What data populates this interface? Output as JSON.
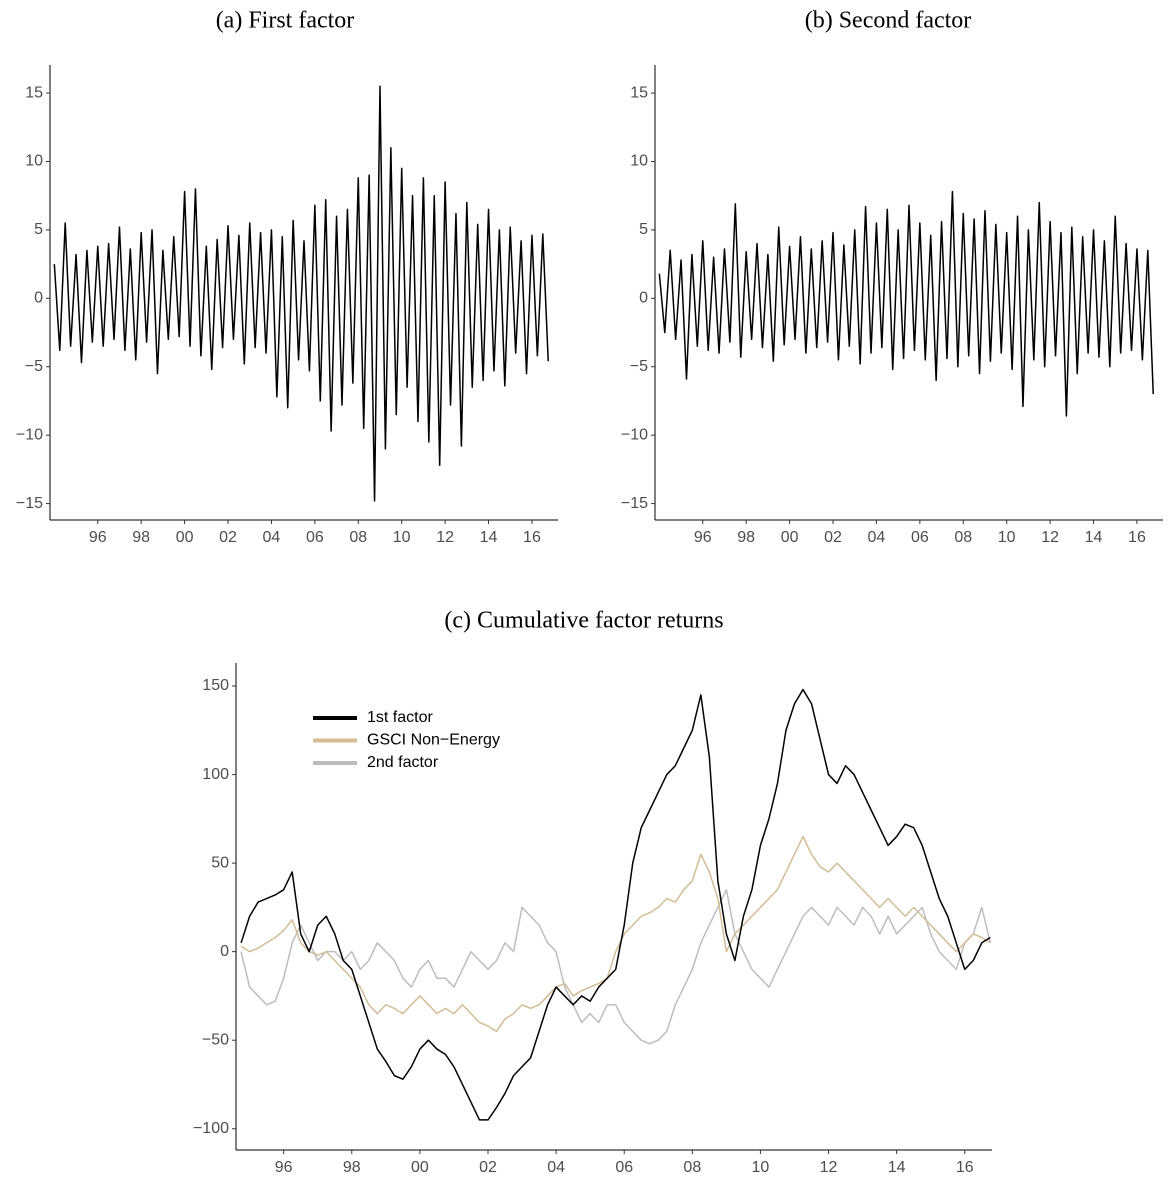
{
  "chart_data": [
    {
      "type": "line",
      "title": "(a) First factor",
      "xlim": [
        1993.8,
        2017.2
      ],
      "xticks": [
        {
          "value": 1996,
          "label": "96"
        },
        {
          "value": 1998,
          "label": "98"
        },
        {
          "value": 2000,
          "label": "00"
        },
        {
          "value": 2002,
          "label": "02"
        },
        {
          "value": 2004,
          "label": "04"
        },
        {
          "value": 2006,
          "label": "06"
        },
        {
          "value": 2008,
          "label": "08"
        },
        {
          "value": 2010,
          "label": "10"
        },
        {
          "value": 2012,
          "label": "12"
        },
        {
          "value": 2014,
          "label": "14"
        },
        {
          "value": 2016,
          "label": "16"
        }
      ],
      "ylim": [
        -16.2,
        17.05
      ],
      "yticks": [
        {
          "value": -15,
          "label": "−15"
        },
        {
          "value": -10,
          "label": "−10"
        },
        {
          "value": -5,
          "label": "−5"
        },
        0,
        5,
        10,
        15
      ],
      "x": [
        1994.0,
        1994.25,
        1994.5,
        1994.75,
        1995.0,
        1995.25,
        1995.5,
        1995.75,
        1996.0,
        1996.25,
        1996.5,
        1996.75,
        1997.0,
        1997.25,
        1997.5,
        1997.75,
        1998.0,
        1998.25,
        1998.5,
        1998.75,
        1999.0,
        1999.25,
        1999.5,
        1999.75,
        2000.0,
        2000.25,
        2000.5,
        2000.75,
        2001.0,
        2001.25,
        2001.5,
        2001.75,
        2002.0,
        2002.25,
        2002.5,
        2002.75,
        2003.0,
        2003.25,
        2003.5,
        2003.75,
        2004.0,
        2004.25,
        2004.5,
        2004.75,
        2005.0,
        2005.25,
        2005.5,
        2005.75,
        2006.0,
        2006.25,
        2006.5,
        2006.75,
        2007.0,
        2007.25,
        2007.5,
        2007.75,
        2008.0,
        2008.25,
        2008.5,
        2008.75,
        2009.0,
        2009.25,
        2009.5,
        2009.75,
        2010.0,
        2010.25,
        2010.5,
        2010.75,
        2011.0,
        2011.25,
        2011.5,
        2011.75,
        2012.0,
        2012.25,
        2012.5,
        2012.75,
        2013.0,
        2013.25,
        2013.5,
        2013.75,
        2014.0,
        2014.25,
        2014.5,
        2014.75,
        2015.0,
        2015.25,
        2015.5,
        2015.75,
        2016.0,
        2016.25,
        2016.5,
        2016.75
      ],
      "series": [
        {
          "color": "#000000",
          "values": [
            2.5,
            -3.8,
            5.5,
            -3.5,
            3.2,
            -4.7,
            3.5,
            -3.2,
            3.8,
            -3.5,
            4.0,
            -3.0,
            5.2,
            -3.8,
            3.6,
            -4.5,
            4.8,
            -3.2,
            5.0,
            -5.5,
            3.5,
            -3.0,
            4.5,
            -2.8,
            7.8,
            -3.5,
            8.0,
            -4.2,
            3.8,
            -5.2,
            4.3,
            -3.6,
            5.3,
            -3.0,
            4.6,
            -4.8,
            5.5,
            -3.6,
            4.8,
            -4.0,
            5.0,
            -7.2,
            4.5,
            -8.0,
            5.7,
            -4.5,
            4.2,
            -5.3,
            6.8,
            -7.5,
            7.2,
            -9.7,
            6.0,
            -7.8,
            6.5,
            -6.2,
            8.8,
            -9.5,
            9.0,
            -14.8,
            15.5,
            -11.0,
            11.0,
            -8.5,
            9.5,
            -6.5,
            7.5,
            -9.0,
            8.8,
            -10.5,
            7.5,
            -12.2,
            8.5,
            -7.8,
            6.2,
            -10.8,
            7.0,
            -6.5,
            5.4,
            -6.0,
            6.5,
            -5.3,
            5.0,
            -6.4,
            5.2,
            -4.0,
            4.2,
            -5.5,
            4.6,
            -4.2,
            4.7,
            -4.6
          ]
        }
      ]
    },
    {
      "type": "line",
      "title": "(b) Second factor",
      "xlim": [
        1993.8,
        2017.2
      ],
      "xticks": [
        {
          "value": 1996,
          "label": "96"
        },
        {
          "value": 1998,
          "label": "98"
        },
        {
          "value": 2000,
          "label": "00"
        },
        {
          "value": 2002,
          "label": "02"
        },
        {
          "value": 2004,
          "label": "04"
        },
        {
          "value": 2006,
          "label": "06"
        },
        {
          "value": 2008,
          "label": "08"
        },
        {
          "value": 2010,
          "label": "10"
        },
        {
          "value": 2012,
          "label": "12"
        },
        {
          "value": 2014,
          "label": "14"
        },
        {
          "value": 2016,
          "label": "16"
        }
      ],
      "ylim": [
        -16.2,
        17.05
      ],
      "yticks": [
        {
          "value": -15,
          "label": "−15"
        },
        {
          "value": -10,
          "label": "−10"
        },
        {
          "value": -5,
          "label": "−5"
        },
        0,
        5,
        10,
        15
      ],
      "x": [
        1994.0,
        1994.25,
        1994.5,
        1994.75,
        1995.0,
        1995.25,
        1995.5,
        1995.75,
        1996.0,
        1996.25,
        1996.5,
        1996.75,
        1997.0,
        1997.25,
        1997.5,
        1997.75,
        1998.0,
        1998.25,
        1998.5,
        1998.75,
        1999.0,
        1999.25,
        1999.5,
        1999.75,
        2000.0,
        2000.25,
        2000.5,
        2000.75,
        2001.0,
        2001.25,
        2001.5,
        2001.75,
        2002.0,
        2002.25,
        2002.5,
        2002.75,
        2003.0,
        2003.25,
        2003.5,
        2003.75,
        2004.0,
        2004.25,
        2004.5,
        2004.75,
        2005.0,
        2005.25,
        2005.5,
        2005.75,
        2006.0,
        2006.25,
        2006.5,
        2006.75,
        2007.0,
        2007.25,
        2007.5,
        2007.75,
        2008.0,
        2008.25,
        2008.5,
        2008.75,
        2009.0,
        2009.25,
        2009.5,
        2009.75,
        2010.0,
        2010.25,
        2010.5,
        2010.75,
        2011.0,
        2011.25,
        2011.5,
        2011.75,
        2012.0,
        2012.25,
        2012.5,
        2012.75,
        2013.0,
        2013.25,
        2013.5,
        2013.75,
        2014.0,
        2014.25,
        2014.5,
        2014.75,
        2015.0,
        2015.25,
        2015.5,
        2015.75,
        2016.0,
        2016.25,
        2016.5,
        2016.75
      ],
      "series": [
        {
          "color": "#000000",
          "values": [
            1.8,
            -2.5,
            3.5,
            -3.0,
            2.8,
            -5.9,
            3.2,
            -3.5,
            4.2,
            -3.8,
            3.0,
            -4.0,
            3.6,
            -3.2,
            6.9,
            -4.3,
            3.4,
            -3.0,
            4.0,
            -3.6,
            3.2,
            -4.6,
            5.2,
            -3.4,
            3.8,
            -3.0,
            4.5,
            -4.0,
            3.6,
            -3.6,
            4.2,
            -3.2,
            4.8,
            -4.5,
            3.9,
            -3.5,
            5.0,
            -4.8,
            6.7,
            -4.0,
            5.5,
            -3.6,
            6.5,
            -5.2,
            5.0,
            -4.4,
            6.8,
            -3.8,
            5.5,
            -4.5,
            4.6,
            -6.0,
            5.6,
            -4.4,
            7.8,
            -5.0,
            6.2,
            -4.2,
            5.8,
            -5.5,
            6.4,
            -4.6,
            5.4,
            -4.0,
            4.8,
            -5.2,
            6.0,
            -7.9,
            5.0,
            -4.5,
            7.0,
            -5.0,
            5.6,
            -4.2,
            4.8,
            -8.6,
            5.2,
            -5.5,
            4.5,
            -4.0,
            5.0,
            -4.3,
            4.2,
            -5.0,
            6.0,
            -4.0,
            4.0,
            -3.8,
            3.6,
            -4.5,
            3.5,
            -7.0
          ]
        }
      ]
    },
    {
      "type": "line",
      "title": "(c) Cumulative factor returns",
      "legend": "upper left",
      "xlim": [
        1994.6,
        2016.8
      ],
      "xticks": [
        {
          "value": 1996,
          "label": "96"
        },
        {
          "value": 1998,
          "label": "98"
        },
        {
          "value": 2000,
          "label": "00"
        },
        {
          "value": 2002,
          "label": "02"
        },
        {
          "value": 2004,
          "label": "04"
        },
        {
          "value": 2006,
          "label": "06"
        },
        {
          "value": 2008,
          "label": "08"
        },
        {
          "value": 2010,
          "label": "10"
        },
        {
          "value": 2012,
          "label": "12"
        },
        {
          "value": 2014,
          "label": "14"
        },
        {
          "value": 2016,
          "label": "16"
        }
      ],
      "ylim": [
        -112,
        163
      ],
      "yticks": [
        {
          "value": -100,
          "label": "−100"
        },
        {
          "value": -50,
          "label": "−50"
        },
        0,
        50,
        100,
        150
      ],
      "x": [
        1994.75,
        1995.0,
        1995.25,
        1995.5,
        1995.75,
        1996.0,
        1996.25,
        1996.5,
        1996.75,
        1997.0,
        1997.25,
        1997.5,
        1997.75,
        1998.0,
        1998.25,
        1998.5,
        1998.75,
        1999.0,
        1999.25,
        1999.5,
        1999.75,
        2000.0,
        2000.25,
        2000.5,
        2000.75,
        2001.0,
        2001.25,
        2001.5,
        2001.75,
        2002.0,
        2002.25,
        2002.5,
        2002.75,
        2003.0,
        2003.25,
        2003.5,
        2003.75,
        2004.0,
        2004.25,
        2004.5,
        2004.75,
        2005.0,
        2005.25,
        2005.5,
        2005.75,
        2006.0,
        2006.25,
        2006.5,
        2006.75,
        2007.0,
        2007.25,
        2007.5,
        2007.75,
        2008.0,
        2008.25,
        2008.5,
        2008.75,
        2009.0,
        2009.25,
        2009.5,
        2009.75,
        2010.0,
        2010.25,
        2010.5,
        2010.75,
        2011.0,
        2011.25,
        2011.5,
        2011.75,
        2012.0,
        2012.25,
        2012.5,
        2012.75,
        2013.0,
        2013.25,
        2013.5,
        2013.75,
        2014.0,
        2014.25,
        2014.5,
        2014.75,
        2015.0,
        2015.25,
        2015.5,
        2015.75,
        2016.0,
        2016.25,
        2016.5,
        2016.75
      ],
      "series": [
        {
          "name": "2nd factor",
          "color": "#bdbdbd",
          "values": [
            0,
            -20,
            -25,
            -30,
            -28,
            -15,
            5,
            15,
            5,
            -5,
            0,
            0,
            -5,
            0,
            -10,
            -5,
            5,
            0,
            -5,
            -15,
            -20,
            -10,
            -5,
            -15,
            -15,
            -20,
            -10,
            0,
            -5,
            -10,
            -5,
            5,
            0,
            25,
            20,
            15,
            5,
            0,
            -20,
            -30,
            -40,
            -35,
            -40,
            -30,
            -30,
            -40,
            -45,
            -50,
            -52,
            -50,
            -45,
            -30,
            -20,
            -10,
            5,
            15,
            25,
            35,
            10,
            0,
            -10,
            -15,
            -20,
            -10,
            0,
            10,
            20,
            25,
            20,
            15,
            25,
            20,
            15,
            25,
            20,
            10,
            20,
            10,
            15,
            20,
            25,
            10,
            0,
            -5,
            -10,
            5,
            10,
            25,
            5
          ]
        },
        {
          "name": "GSCI Non−Energy",
          "color": "#d4bc94",
          "values": [
            3,
            0,
            2,
            5,
            8,
            12,
            18,
            5,
            0,
            -2,
            0,
            -5,
            -10,
            -15,
            -20,
            -30,
            -35,
            -30,
            -32,
            -35,
            -30,
            -25,
            -30,
            -35,
            -32,
            -35,
            -30,
            -35,
            -40,
            -42,
            -45,
            -38,
            -35,
            -30,
            -32,
            -30,
            -25,
            -20,
            -18,
            -25,
            -22,
            -20,
            -18,
            -15,
            0,
            10,
            15,
            20,
            22,
            25,
            30,
            28,
            35,
            40,
            55,
            45,
            30,
            0,
            10,
            15,
            20,
            25,
            30,
            35,
            45,
            55,
            65,
            55,
            48,
            45,
            50,
            45,
            40,
            35,
            30,
            25,
            30,
            25,
            20,
            25,
            20,
            15,
            10,
            5,
            0,
            5,
            10,
            8,
            5
          ]
        },
        {
          "name": "1st factor",
          "color": "#000000",
          "values": [
            5,
            20,
            28,
            30,
            32,
            35,
            45,
            10,
            0,
            15,
            20,
            10,
            -5,
            -10,
            -25,
            -40,
            -55,
            -62,
            -70,
            -72,
            -65,
            -55,
            -50,
            -55,
            -58,
            -65,
            -75,
            -85,
            -95,
            -95,
            -88,
            -80,
            -70,
            -65,
            -60,
            -45,
            -30,
            -20,
            -25,
            -30,
            -25,
            -28,
            -20,
            -15,
            -10,
            15,
            50,
            70,
            80,
            90,
            100,
            105,
            115,
            125,
            145,
            110,
            40,
            10,
            -5,
            20,
            35,
            60,
            75,
            95,
            125,
            140,
            148,
            140,
            120,
            100,
            95,
            105,
            100,
            90,
            80,
            70,
            60,
            65,
            72,
            70,
            60,
            45,
            30,
            20,
            5,
            -10,
            -5,
            5,
            8
          ]
        }
      ]
    }
  ]
}
